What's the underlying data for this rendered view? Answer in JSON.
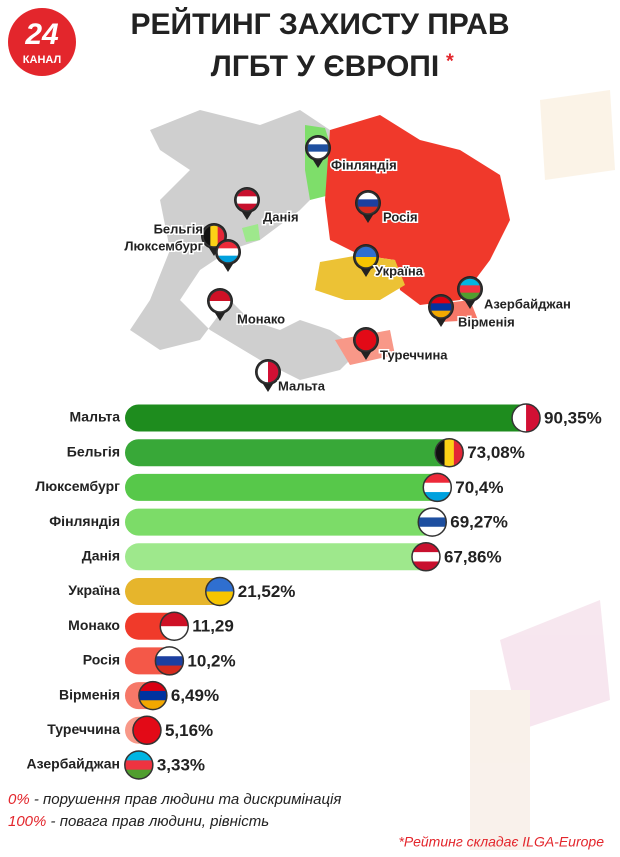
{
  "logo": {
    "number": "24",
    "name": "КАНАЛ"
  },
  "chart_data": {
    "type": "bar",
    "orientation": "horizontal",
    "title": [
      "РЕЙТИНГ ЗАХИСТУ ПРАВ",
      "ЛГБТ У ЄВРОПІ"
    ],
    "title_mark": "*",
    "categories": [
      "Мальта",
      "Бельгія",
      "Люксембург",
      "Фінляндія",
      "Данія",
      "Україна",
      "Монако",
      "Росія",
      "Вірменія",
      "Туреччина",
      "Азербайджан"
    ],
    "values": [
      90.35,
      73.08,
      70.4,
      69.27,
      67.86,
      21.52,
      11.29,
      10.2,
      6.49,
      5.16,
      3.33
    ],
    "value_labels": [
      "90,35%",
      "73,08%",
      "70,4%",
      "69,27%",
      "67,86%",
      "21,52%",
      "11,29",
      "10,2%",
      "6,49%",
      "5,16%",
      "3,33%"
    ],
    "colors": [
      "#1e8c1e",
      "#38a838",
      "#57c84a",
      "#7cdc68",
      "#9ee88c",
      "#e6b52c",
      "#f03a2a",
      "#f45848",
      "#f67868",
      "#f89888",
      "#fab6a8"
    ]
  },
  "map_labels": [
    "Фінляндія",
    "Данія",
    "Росія",
    "Бельгія",
    "Люксембург",
    "Україна",
    "Азербайджан",
    "Вірменія",
    "Монако",
    "Туреччина",
    "Мальта"
  ],
  "notes": [
    {
      "key": "0%",
      "text": " - порушення прав людини та дискримінація"
    },
    {
      "key": "100%",
      "text": " - повага прав людини, рівність"
    }
  ],
  "source": "*Рейтинг складає ILGA-Europe"
}
